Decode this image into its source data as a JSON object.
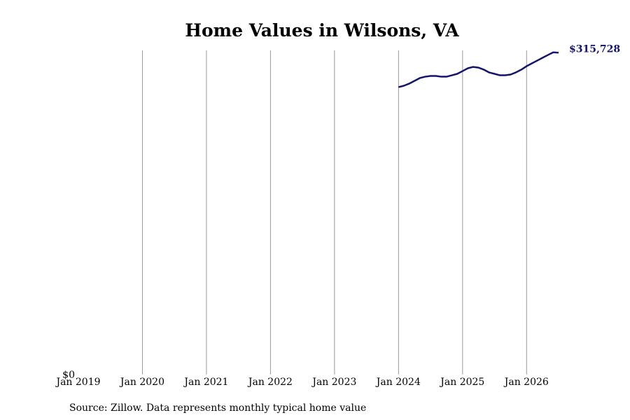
{
  "chart_data": {
    "type": "line",
    "title": "Home Values in Wilsons, VA",
    "source": "Source: Zillow. Data represents monthly typical home value",
    "x": [
      "2024-01",
      "2024-02",
      "2024-03",
      "2024-04",
      "2024-05",
      "2024-06",
      "2024-07",
      "2024-08",
      "2024-09",
      "2024-10",
      "2024-11",
      "2024-12",
      "2025-01",
      "2025-02",
      "2025-03",
      "2025-04",
      "2025-05",
      "2025-06",
      "2025-07",
      "2025-08",
      "2025-09",
      "2025-10",
      "2025-11",
      "2025-12",
      "2026-01",
      "2026-02",
      "2026-03",
      "2026-04",
      "2026-05",
      "2026-06",
      "2026-07"
    ],
    "series": [
      {
        "color": "#14146b",
        "values": [
          282000,
          283300,
          285400,
          288100,
          290900,
          292200,
          292900,
          292900,
          292200,
          292200,
          293600,
          295000,
          297700,
          300500,
          301800,
          301100,
          299100,
          296300,
          295000,
          293600,
          293600,
          294300,
          296400,
          299100,
          302500,
          305300,
          308000,
          310800,
          313500,
          316100,
          315728
        ],
        "value_labels": [
          null,
          null,
          null,
          null,
          null,
          null,
          null,
          null,
          null,
          null,
          null,
          null,
          null,
          null,
          null,
          null,
          null,
          null,
          null,
          null,
          null,
          null,
          null,
          null,
          null,
          null,
          null,
          null,
          null,
          null,
          "$315,728"
        ]
      }
    ],
    "xlim": [
      "2019-01",
      "2026-07"
    ],
    "xticks": [
      {
        "value": "2019-01",
        "label": "Jan 2019"
      },
      {
        "value": "2020-01",
        "label": "Jan 2020"
      },
      {
        "value": "2021-01",
        "label": "Jan 2021"
      },
      {
        "value": "2022-01",
        "label": "Jan 2022"
      },
      {
        "value": "2023-01",
        "label": "Jan 2023"
      },
      {
        "value": "2024-01",
        "label": "Jan 2024"
      },
      {
        "value": "2025-01",
        "label": "Jan 2025"
      },
      {
        "value": "2026-01",
        "label": "Jan 2026"
      }
    ],
    "ylim": [
      0,
      318000
    ],
    "yticks": [
      {
        "value": 0,
        "label": "$0"
      }
    ],
    "grid": true
  }
}
